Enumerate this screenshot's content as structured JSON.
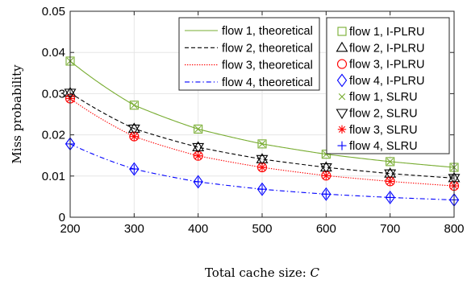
{
  "chart_data": {
    "type": "line",
    "xlabel_text": "Total cache size: ",
    "xlabel_var": "C",
    "ylabel": "Miss probability",
    "xlim": [
      200,
      800
    ],
    "ylim": [
      0,
      0.05
    ],
    "xticks": [
      200,
      300,
      400,
      500,
      600,
      700,
      800
    ],
    "yticks": [
      0,
      0.01,
      0.02,
      0.03,
      0.04,
      0.05
    ],
    "xtick_labels": [
      "200",
      "300",
      "400",
      "500",
      "600",
      "700",
      "800"
    ],
    "ytick_labels": [
      "0",
      "0.01",
      "0.02",
      "0.03",
      "0.04",
      "0.05"
    ],
    "grid": true,
    "x": [
      200,
      300,
      400,
      500,
      600,
      700,
      800
    ],
    "theoretical": [
      {
        "name": "flow 1, theoretical",
        "color": "#77ac30",
        "dash": "solid",
        "coef": [
          0.0379,
          0.0272,
          0.0214,
          0.0178,
          0.0153,
          0.0135,
          0.0121
        ]
      },
      {
        "name": "flow 2, theoretical",
        "color": "#000000",
        "dash": "dashed",
        "coef": [
          0.0302,
          0.0215,
          0.017,
          0.0141,
          0.0121,
          0.0106,
          0.0095
        ]
      },
      {
        "name": "flow 3, theoretical",
        "color": "#ff0000",
        "dash": "dotted",
        "coef": [
          0.0288,
          0.0196,
          0.0149,
          0.0121,
          0.0101,
          0.0087,
          0.0076
        ]
      },
      {
        "name": "flow 4, theoretical",
        "color": "#0000ff",
        "dash": "dashdot",
        "coef": [
          0.0178,
          0.0117,
          0.0086,
          0.0068,
          0.0056,
          0.0048,
          0.0042
        ]
      }
    ],
    "simulated": [
      {
        "name": "flow 1, I-PLRU",
        "color": "#77ac30",
        "marker": "square",
        "values": [
          0.0379,
          0.0272,
          0.0214,
          0.0178,
          0.0153,
          0.0135,
          0.0121
        ]
      },
      {
        "name": "flow 2, I-PLRU",
        "color": "#000000",
        "marker": "triangle-up",
        "values": [
          0.0302,
          0.0215,
          0.017,
          0.0141,
          0.0121,
          0.0106,
          0.0095
        ]
      },
      {
        "name": "flow 3, I-PLRU",
        "color": "#ff0000",
        "marker": "circle",
        "values": [
          0.0288,
          0.0196,
          0.0149,
          0.0121,
          0.0101,
          0.0087,
          0.0076
        ]
      },
      {
        "name": "flow 4, I-PLRU",
        "color": "#0000ff",
        "marker": "diamond",
        "values": [
          0.0178,
          0.0117,
          0.0086,
          0.0068,
          0.0056,
          0.0048,
          0.0042
        ]
      },
      {
        "name": "flow 1, SLRU",
        "color": "#77ac30",
        "marker": "x",
        "values": [
          0.0379,
          0.0272,
          0.0214,
          0.0178,
          0.0153,
          0.0135,
          0.0121
        ]
      },
      {
        "name": "flow 2, SLRU",
        "color": "#000000",
        "marker": "triangle-down",
        "values": [
          0.0302,
          0.0215,
          0.017,
          0.0141,
          0.0121,
          0.0106,
          0.0095
        ]
      },
      {
        "name": "flow 3, SLRU",
        "color": "#ff0000",
        "marker": "asterisk",
        "values": [
          0.0288,
          0.0196,
          0.0149,
          0.0121,
          0.0101,
          0.0087,
          0.0076
        ]
      },
      {
        "name": "flow 4, SLRU",
        "color": "#0000ff",
        "marker": "plus",
        "values": [
          0.0178,
          0.0117,
          0.0086,
          0.0068,
          0.0056,
          0.0048,
          0.0042
        ]
      }
    ]
  }
}
